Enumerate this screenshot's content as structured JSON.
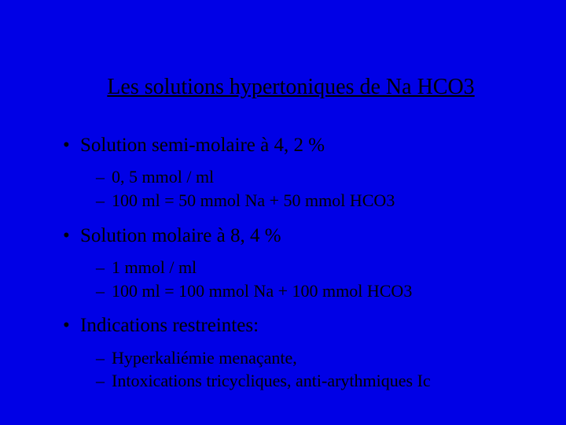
{
  "slide": {
    "background_color": "#0000e6",
    "text_color": "#000000",
    "font_family": "Times New Roman",
    "title": "Les solutions hypertoniques de Na HCO3",
    "title_fontsize": 28,
    "bullet_l1_fontsize": 25,
    "bullet_l2_fontsize": 22,
    "items": [
      {
        "text": "Solution semi-molaire à 4, 2 %",
        "sub": [
          "0, 5 mmol / ml",
          "100 ml = 50 mmol Na + 50 mmol HCO3"
        ]
      },
      {
        "text": "Solution molaire à 8, 4 %",
        "sub": [
          "1 mmol / ml",
          "100 ml = 100 mmol Na + 100 mmol HCO3"
        ]
      },
      {
        "text": "Indications restreintes:",
        "sub": [
          "Hyperkaliémie menaçante,",
          "Intoxications tricycliques, anti-arythmiques Ic"
        ]
      }
    ]
  }
}
